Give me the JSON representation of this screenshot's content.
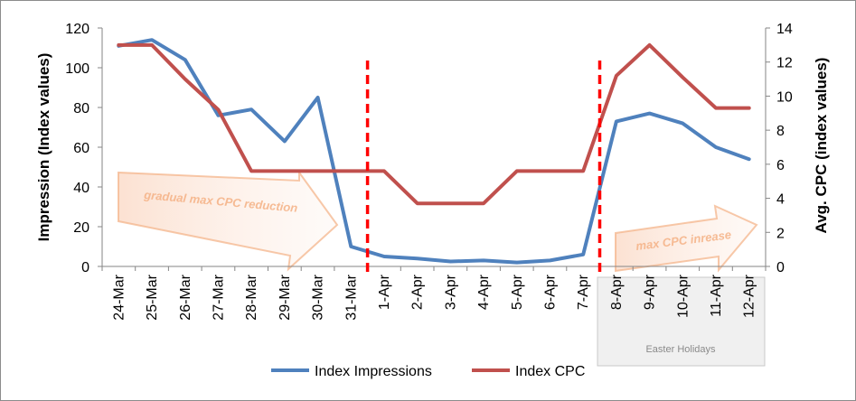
{
  "chart_data": {
    "type": "line",
    "categories": [
      "24-Mar",
      "25-Mar",
      "26-Mar",
      "27-Mar",
      "28-Mar",
      "29-Mar",
      "30-Mar",
      "31-Mar",
      "1-Apr",
      "2-Apr",
      "3-Apr",
      "4-Apr",
      "5-Apr",
      "6-Apr",
      "7-Apr",
      "8-Apr",
      "9-Apr",
      "10-Apr",
      "11-Apr",
      "12-Apr"
    ],
    "ylabel": "Impression (Index values)",
    "y2label": "Avg. CPC (index values)",
    "ylim": [
      0,
      120
    ],
    "y2lim": [
      0,
      14
    ],
    "yticks": [
      "0",
      "20",
      "40",
      "60",
      "80",
      "100",
      "120"
    ],
    "y2ticks": [
      "0",
      "2",
      "4",
      "6",
      "8",
      "10",
      "12",
      "14"
    ],
    "series": [
      {
        "name": "Index Impressions",
        "axis": "left",
        "color": "#4f81bd",
        "values": [
          111,
          114,
          104,
          76,
          79,
          63,
          85,
          10,
          5,
          4,
          2.5,
          3,
          2,
          3,
          6,
          73,
          77,
          72,
          60,
          54
        ]
      },
      {
        "name": "Index CPC",
        "axis": "right",
        "color": "#c0504d",
        "values": [
          13,
          13,
          11,
          9.2,
          5.6,
          5.6,
          5.6,
          5.6,
          5.6,
          3.7,
          3.7,
          3.7,
          5.6,
          5.6,
          5.6,
          11.2,
          13,
          11.1,
          9.3,
          9.3
        ]
      }
    ],
    "markers": [
      "31-Mar",
      "7-Apr"
    ],
    "marker_color": "#ff0000",
    "annotations": {
      "reduction": "gradual max CPC reduction",
      "increase": "max CPC inrease",
      "holidays": "Easter Holidays"
    },
    "legend_position": "bottom",
    "grid": false
  }
}
